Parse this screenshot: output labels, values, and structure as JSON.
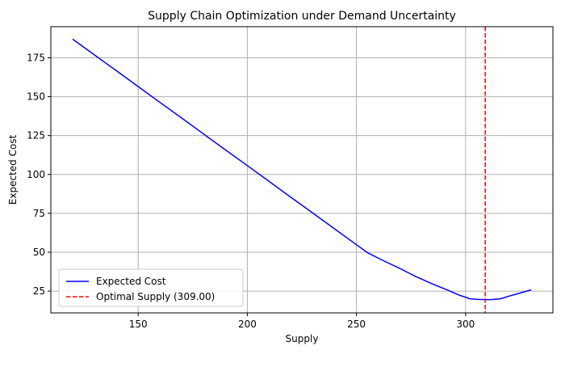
{
  "chart_data": {
    "type": "line",
    "title": "Supply Chain Optimization under Demand Uncertainty",
    "xlabel": "Supply",
    "ylabel": "Expected Cost",
    "xlim": [
      110,
      340
    ],
    "ylim": [
      11,
      195
    ],
    "xticks": [
      150,
      200,
      250,
      300
    ],
    "yticks": [
      25,
      50,
      75,
      100,
      125,
      150,
      175
    ],
    "grid": true,
    "legend_position": "lower-left",
    "series": [
      {
        "name": "Expected Cost",
        "color": "#0000ff",
        "style": "solid",
        "x": [
          120,
          130,
          140,
          150,
          160,
          170,
          180,
          190,
          200,
          210,
          220,
          230,
          240,
          250,
          255,
          262,
          270,
          277,
          285,
          292,
          297,
          302,
          305,
          309,
          312,
          316,
          320,
          325,
          330
        ],
        "y": [
          187,
          176.8,
          166.7,
          156.5,
          146.3,
          136.2,
          126,
          115.8,
          105.7,
          95.5,
          85.3,
          75.2,
          65,
          54.8,
          49.8,
          44.8,
          39.5,
          34.5,
          29.5,
          25.5,
          22.5,
          20.1,
          19.7,
          19.5,
          19.6,
          20.1,
          21.8,
          23.8,
          25.8
        ]
      }
    ],
    "vlines": [
      {
        "name": "Optimal Supply (309.00)",
        "x": 309,
        "color": "#ff0000",
        "style": "dashed"
      }
    ]
  }
}
